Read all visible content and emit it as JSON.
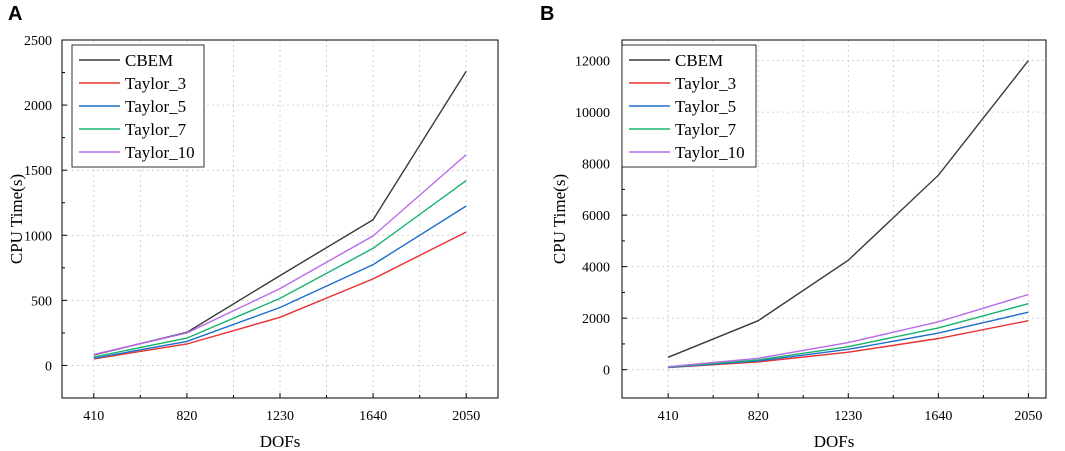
{
  "chart_data": [
    {
      "panel_label": "A",
      "type": "line",
      "x": [
        410,
        820,
        1230,
        1640,
        2050
      ],
      "xticks": [
        "410",
        "820",
        "1230",
        "1640",
        "2050"
      ],
      "xlim": [
        270,
        2190
      ],
      "ylim": [
        -250,
        2500
      ],
      "yticks": [
        0,
        500,
        1000,
        1500,
        2000,
        2500
      ],
      "ytick_labels": [
        "0",
        "500",
        "1000",
        "1500",
        "2000",
        "2500"
      ],
      "xlabel": "DOFs",
      "ylabel": "CPU Time(s)",
      "grid": true,
      "legend_position": "top-left",
      "series": [
        {
          "name": "CBEM",
          "color": "#3a3a3a",
          "values": [
            80,
            255,
            690,
            1120,
            2260
          ]
        },
        {
          "name": "Taylor_3",
          "color": "#e8312f",
          "values": [
            50,
            165,
            370,
            665,
            1025
          ]
        },
        {
          "name": "Taylor_5",
          "color": "#1f6fce",
          "values": [
            55,
            185,
            445,
            775,
            1225
          ]
        },
        {
          "name": "Taylor_7",
          "color": "#17b36b",
          "values": [
            65,
            210,
            515,
            900,
            1420
          ]
        },
        {
          "name": "Taylor_10",
          "color": "#b86be8",
          "values": [
            85,
            250,
            590,
            995,
            1620
          ]
        }
      ]
    },
    {
      "panel_label": "B",
      "type": "line",
      "x": [
        410,
        820,
        1230,
        1640,
        2050
      ],
      "xticks": [
        "410",
        "820",
        "1230",
        "1640",
        "2050"
      ],
      "xlim": [
        200,
        2130
      ],
      "ylim": [
        -1100,
        12800
      ],
      "yticks": [
        0,
        2000,
        4000,
        6000,
        8000,
        10000,
        12000
      ],
      "ytick_labels": [
        "0",
        "2000",
        "4000",
        "6000",
        "8000",
        "10000",
        "12000"
      ],
      "xlabel": "DOFs",
      "ylabel": "CPU Time(s)",
      "grid": true,
      "legend_position": "top-left",
      "series": [
        {
          "name": "CBEM",
          "color": "#3a3a3a",
          "values": [
            480,
            1900,
            4250,
            7550,
            12000
          ]
        },
        {
          "name": "Taylor_3",
          "color": "#e8312f",
          "values": [
            80,
            300,
            680,
            1210,
            1900
          ]
        },
        {
          "name": "Taylor_5",
          "color": "#1f6fce",
          "values": [
            90,
            340,
            790,
            1420,
            2230
          ]
        },
        {
          "name": "Taylor_7",
          "color": "#17b36b",
          "values": [
            100,
            380,
            890,
            1620,
            2560
          ]
        },
        {
          "name": "Taylor_10",
          "color": "#b86be8",
          "values": [
            115,
            440,
            1050,
            1860,
            2920
          ]
        }
      ]
    }
  ]
}
